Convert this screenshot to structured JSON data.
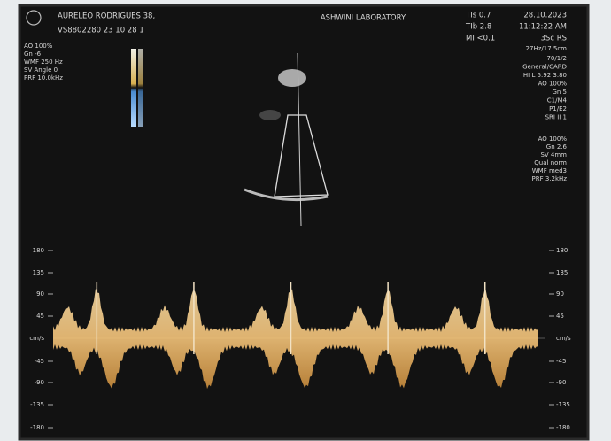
{
  "header": {
    "patient": "AURELEO RODRIGUES 38,",
    "id": "VS8802280 23 10 28 1",
    "lab": "ASHWINI LABORATORY",
    "tis": "TIs  0.7",
    "tib": "TIb  2.8",
    "mi": "MI  <0.1",
    "date": "28.10.2023",
    "time": "11:12:22 AM",
    "probe": "3Sc RS",
    "frame": "27Hz/17.5cm"
  },
  "left_params": [
    "AO 100%",
    "Gn  -6",
    "WMF 250 Hz",
    "SV Angle  0",
    "PRF 10.0kHz"
  ],
  "right_params": [
    "70/1/2",
    "General/CARD",
    "HI L 5.92  3.80",
    "AO 100%",
    "Gn  5",
    "C1/M4",
    "P1/E2",
    "SRI II 1"
  ],
  "doppler_params": [
    "AO 100%",
    "Gn  2.6",
    "SV 4mm",
    "Qual norm",
    "WMF med3",
    "PRF 3.2kHz"
  ],
  "scale": {
    "unit": "cm/s",
    "left": [
      180,
      135,
      90,
      45,
      -45,
      -90,
      -135,
      -180
    ],
    "right": [
      180,
      135,
      90,
      45,
      -45,
      -90,
      -135,
      -180
    ]
  }
}
